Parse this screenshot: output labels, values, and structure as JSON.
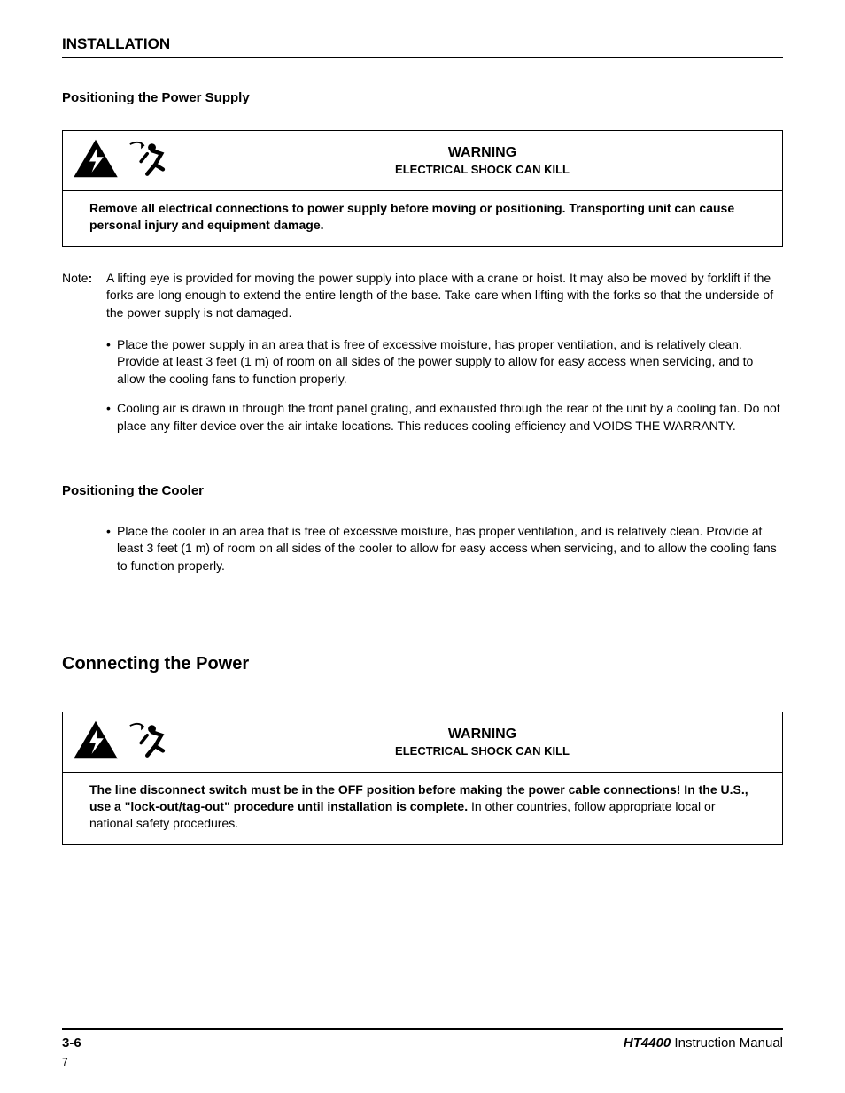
{
  "header": {
    "title": "INSTALLATION"
  },
  "sec1": {
    "heading": "Positioning the Power Supply",
    "warning": {
      "word": "WARNING",
      "sub": "ELECTRICAL SHOCK CAN KILL",
      "body": "Remove all electrical connections to power supply before moving or positioning. Transporting unit can cause personal injury and equipment damage."
    },
    "note_label": "Note",
    "note_text": "A lifting eye is provided for moving the power supply into place with a crane or hoist. It may also be moved by forklift if the forks are long enough to extend the entire length of the base. Take care when lifting with the forks so that the underside of the power supply is not damaged.",
    "bullets": [
      "Place the power supply in an area that is free of excessive moisture, has proper ventilation, and is relatively clean. Provide at least 3 feet (1 m) of room on all sides of the power supply to allow for easy access when servicing, and to allow the cooling fans to function properly.",
      "Cooling air is drawn in through the front panel grating, and exhausted through the rear of the unit by a cooling fan. Do not place any filter device over the air intake locations. This reduces cooling efficiency and VOIDS THE WARRANTY."
    ]
  },
  "sec2": {
    "heading": "Positioning the Cooler",
    "bullets": [
      "Place the cooler in an area that is free of excessive moisture, has proper ventilation, and is relatively clean. Provide at least 3 feet (1 m) of room on all sides of the cooler to allow for easy access when servicing, and to allow the cooling fans to function properly."
    ]
  },
  "sec3": {
    "heading": "Connecting the Power",
    "warning": {
      "word": "WARNING",
      "sub": "ELECTRICAL SHOCK CAN KILL",
      "body_bold": "The line disconnect switch must be in the OFF position before making the power cable connections! In the U.S., use a \"lock-out/tag-out\" procedure until installation is complete.",
      "body_rest": " In other countries, follow appropriate local or national safety procedures."
    }
  },
  "footer": {
    "page": "3-6",
    "product": "HT4400",
    "manual": " Instruction Manual",
    "small": "7"
  },
  "icons": {
    "shock_svg": "<svg viewBox='0 0 60 52' width='54' height='46'><polygon points='30,2 58,50 2,50' fill='#000'/><path d='M32 12 L22 30 L30 30 L25 44 L40 24 L32 24 Z' fill='#fff'/></svg>",
    "person_svg": "<svg viewBox='0 0 60 52' width='54' height='46'><path d='M6 8 Q18 2 24 10' stroke='#000' stroke-width='2' fill='none'/><polygon points='24,10 20,6 20,14' fill='#000'/><circle cx='34' cy='12' r='5' fill='#000'/><path d='M34 16 L46 20 L38 34 L48 40 M38 34 L28 46' stroke='#000' stroke-width='5' fill='none' stroke-linecap='round'/><line x1='28' y1='20' x2='20' y2='30' stroke='#000' stroke-width='4' stroke-linecap='round'/></svg>"
  }
}
